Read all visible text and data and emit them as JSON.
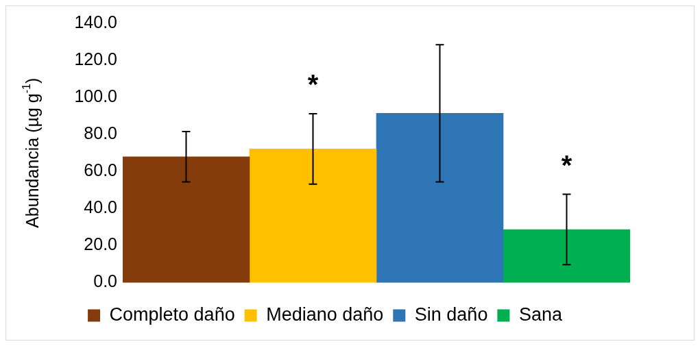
{
  "chart_data": {
    "type": "bar",
    "ylabel": "Abundancia (µg g$^{-1}$)",
    "categories": [
      null
    ],
    "series": [
      {
        "name": "Completo daño",
        "color": "#843c0c",
        "values": [
          68.0
        ],
        "errors": [
          13.6
        ]
      },
      {
        "name": "Mediano daño",
        "color": "#ffc000",
        "values": [
          72.2
        ],
        "errors": [
          19.0
        ],
        "value_labels": [
          "*"
        ]
      },
      {
        "name": "Sin daño",
        "color": "#2e75b6",
        "values": [
          91.4
        ],
        "errors": [
          37.0
        ]
      },
      {
        "name": "Sana",
        "color": "#00b050",
        "values": [
          28.7
        ],
        "errors": [
          19.0
        ],
        "value_labels": [
          "*"
        ]
      }
    ],
    "ylim": [
      0,
      140
    ],
    "yticks": [
      {
        "value": 0,
        "label": "0.0"
      },
      {
        "value": 20,
        "label": "20.0"
      },
      {
        "value": 40,
        "label": "40.0"
      },
      {
        "value": 60,
        "label": "60.0"
      },
      {
        "value": 80,
        "label": "80.0"
      },
      {
        "value": 100,
        "label": "100.0"
      },
      {
        "value": 120,
        "label": "120.0"
      },
      {
        "value": 140,
        "label": "140.0"
      }
    ],
    "grid": false,
    "legend": "bottom"
  }
}
